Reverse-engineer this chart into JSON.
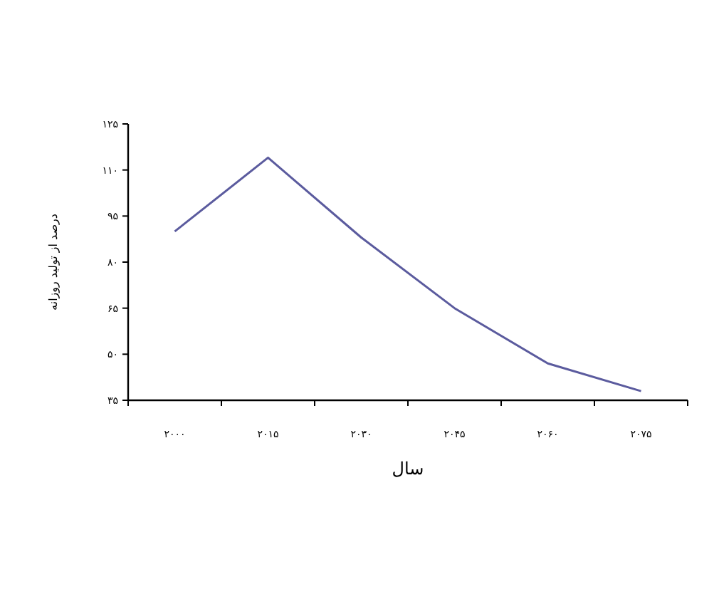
{
  "chart_data": {
    "type": "line",
    "xlabel": "سال",
    "ylabel": "درصد از تولید روزانه",
    "categories": [
      "۲۰۰۰",
      "۲۰۱۵",
      "۲۰۳۰",
      "۲۰۴۵",
      "۲۰۶۰",
      "۲۰۷۵"
    ],
    "series": [
      {
        "color": "#5b5b9e",
        "values": [
          90,
          114,
          88,
          65,
          47,
          38
        ]
      }
    ],
    "ylim": [
      35,
      125
    ],
    "yticks": [
      {
        "value": 35,
        "label": "۳۵"
      },
      {
        "value": 50,
        "label": "۵۰"
      },
      {
        "value": 65,
        "label": "۶۵"
      },
      {
        "value": 80,
        "label": "۸۰"
      },
      {
        "value": 95,
        "label": "۹۵"
      },
      {
        "value": 110,
        "label": "۱۱۰"
      },
      {
        "value": 125,
        "label": "۱۲۵"
      }
    ],
    "line_style": "solid"
  }
}
